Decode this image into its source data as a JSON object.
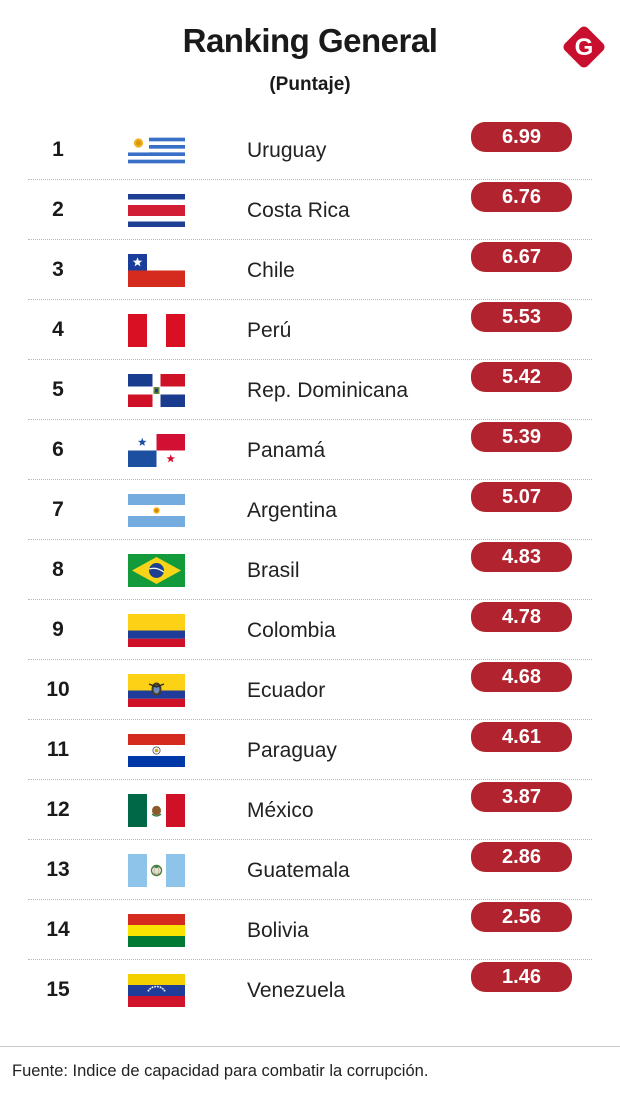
{
  "header": {
    "title": "Ranking General",
    "subtitle": "(Puntaje)",
    "logo_letter": "G",
    "logo_color": "#c8102e"
  },
  "chart_data": {
    "type": "table",
    "title": "Ranking General",
    "subtitle": "(Puntaje)",
    "columns": [
      "rank",
      "flag",
      "country",
      "score"
    ],
    "rows": [
      {
        "rank": "1",
        "flag": "uruguay-flag-icon",
        "country": "Uruguay",
        "score": "6.99"
      },
      {
        "rank": "2",
        "flag": "costa-rica-flag-icon",
        "country": "Costa Rica",
        "score": "6.76"
      },
      {
        "rank": "3",
        "flag": "chile-flag-icon",
        "country": "Chile",
        "score": "6.67"
      },
      {
        "rank": "4",
        "flag": "peru-flag-icon",
        "country": "Perú",
        "score": "5.53"
      },
      {
        "rank": "5",
        "flag": "dominican-republic-flag-icon",
        "country": "Rep. Dominicana",
        "score": "5.42"
      },
      {
        "rank": "6",
        "flag": "panama-flag-icon",
        "country": "Panamá",
        "score": "5.39"
      },
      {
        "rank": "7",
        "flag": "argentina-flag-icon",
        "country": "Argentina",
        "score": "5.07"
      },
      {
        "rank": "8",
        "flag": "brazil-flag-icon",
        "country": "Brasil",
        "score": "4.83"
      },
      {
        "rank": "9",
        "flag": "colombia-flag-icon",
        "country": "Colombia",
        "score": "4.78"
      },
      {
        "rank": "10",
        "flag": "ecuador-flag-icon",
        "country": "Ecuador",
        "score": "4.68"
      },
      {
        "rank": "11",
        "flag": "paraguay-flag-icon",
        "country": "Paraguay",
        "score": "4.61"
      },
      {
        "rank": "12",
        "flag": "mexico-flag-icon",
        "country": "México",
        "score": "3.87"
      },
      {
        "rank": "13",
        "flag": "guatemala-flag-icon",
        "country": "Guatemala",
        "score": "2.86"
      },
      {
        "rank": "14",
        "flag": "bolivia-flag-icon",
        "country": "Bolivia",
        "score": "2.56"
      },
      {
        "rank": "15",
        "flag": "venezuela-flag-icon",
        "country": "Venezuela",
        "score": "1.46"
      }
    ],
    "score_badge_color": "#b0232f"
  },
  "footer": {
    "source": "Fuente: Indice de capacidad para combatir la corrupción."
  }
}
